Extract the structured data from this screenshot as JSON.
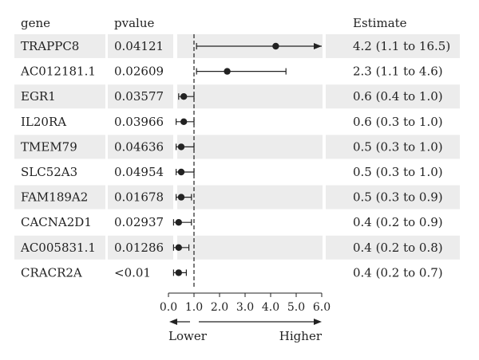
{
  "chart_data": {
    "type": "forest",
    "columns": {
      "gene": "gene",
      "pvalue": "pvalue",
      "estimate": "Estimate"
    },
    "rows": [
      {
        "gene": "TRAPPC8",
        "pvalue": "0.04121",
        "estimate_text": "4.2 (1.1 to 16.5)",
        "est": 4.2,
        "lo": 1.1,
        "hi": 16.5,
        "arrow_right": true
      },
      {
        "gene": "AC012181.1",
        "pvalue": "0.02609",
        "estimate_text": "2.3 (1.1 to 4.6)",
        "est": 2.3,
        "lo": 1.1,
        "hi": 4.6
      },
      {
        "gene": "EGR1",
        "pvalue": "0.03577",
        "estimate_text": "0.6 (0.4 to 1.0)",
        "est": 0.6,
        "lo": 0.4,
        "hi": 1.0
      },
      {
        "gene": "IL20RA",
        "pvalue": "0.03966",
        "estimate_text": "0.6 (0.3 to 1.0)",
        "est": 0.6,
        "lo": 0.3,
        "hi": 1.0
      },
      {
        "gene": "TMEM79",
        "pvalue": "0.04636",
        "estimate_text": "0.5 (0.3 to 1.0)",
        "est": 0.5,
        "lo": 0.3,
        "hi": 1.0
      },
      {
        "gene": "SLC52A3",
        "pvalue": "0.04954",
        "estimate_text": "0.5 (0.3 to 1.0)",
        "est": 0.5,
        "lo": 0.3,
        "hi": 1.0
      },
      {
        "gene": "FAM189A2",
        "pvalue": "0.01678",
        "estimate_text": "0.5 (0.3 to 0.9)",
        "est": 0.5,
        "lo": 0.3,
        "hi": 0.9
      },
      {
        "gene": "CACNA2D1",
        "pvalue": "0.02937",
        "estimate_text": "0.4 (0.2 to 0.9)",
        "est": 0.4,
        "lo": 0.2,
        "hi": 0.9
      },
      {
        "gene": "AC005831.1",
        "pvalue": "0.01286",
        "estimate_text": "0.4 (0.2 to 0.8)",
        "est": 0.4,
        "lo": 0.2,
        "hi": 0.8
      },
      {
        "gene": "CRACR2A",
        "pvalue": "<0.01",
        "estimate_text": "0.4 (0.2 to 0.7)",
        "est": 0.4,
        "lo": 0.2,
        "hi": 0.7
      }
    ],
    "x_ticks": [
      "0.0",
      "1.0",
      "2.0",
      "3.0",
      "4.0",
      "5.0",
      "6.0"
    ],
    "xlim": [
      0,
      6
    ],
    "reference_line": 1.0,
    "direction_labels": {
      "left": "Lower",
      "right": "Higher"
    },
    "colors": {
      "band": "#ececec",
      "ink": "#222222"
    }
  }
}
